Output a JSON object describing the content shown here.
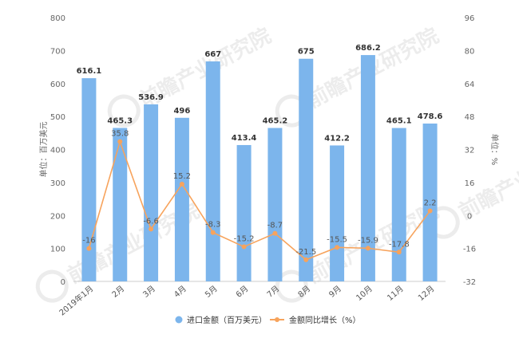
{
  "chart_data": {
    "type": "bar",
    "categories": [
      "2019年1月",
      "2月",
      "3月",
      "4月",
      "5月",
      "6月",
      "7月",
      "8月",
      "9月",
      "10月",
      "11月",
      "12月"
    ],
    "series": [
      {
        "name": "进口金额（百万美元）",
        "type": "bar",
        "axis": "left",
        "color": "#7cb5ec",
        "values": [
          616.1,
          465.3,
          536.9,
          496,
          667,
          413.4,
          465.2,
          675,
          412.2,
          686.2,
          465.1,
          478.6
        ],
        "labels": [
          "616.1",
          "465.3",
          "536.9",
          "496",
          "667",
          "413.4",
          "465.2",
          "675",
          "412.2",
          "686.2",
          "465.1",
          "478.6"
        ]
      },
      {
        "name": "金额同比增长（%）",
        "type": "line",
        "axis": "right",
        "color": "#f7a35c",
        "values": [
          -16,
          35.8,
          -6.6,
          15.2,
          -8.3,
          -15.2,
          -8.7,
          -21.5,
          -15.5,
          -15.9,
          -17.8,
          2.2
        ],
        "labels": [
          "-16",
          "35.8",
          "-6.6",
          "15.2",
          "-8.3",
          "-15.2",
          "-8.7",
          "-21.5",
          "-15.5",
          "-15.9",
          "-17.8",
          "2.2"
        ]
      }
    ],
    "ylabel": "单位：百万美元",
    "y2label": "单位：%",
    "ylim": [
      0,
      800
    ],
    "y2lim": [
      -32,
      96
    ],
    "yticks": [
      "0",
      "100",
      "200",
      "300",
      "400",
      "500",
      "600",
      "700",
      "800"
    ],
    "y2ticks": [
      "-32",
      "-16",
      "0",
      "16",
      "32",
      "48",
      "64",
      "80",
      "96"
    ],
    "legend_position": "bottom",
    "grid": false,
    "watermark": "前瞻产业研究院"
  }
}
